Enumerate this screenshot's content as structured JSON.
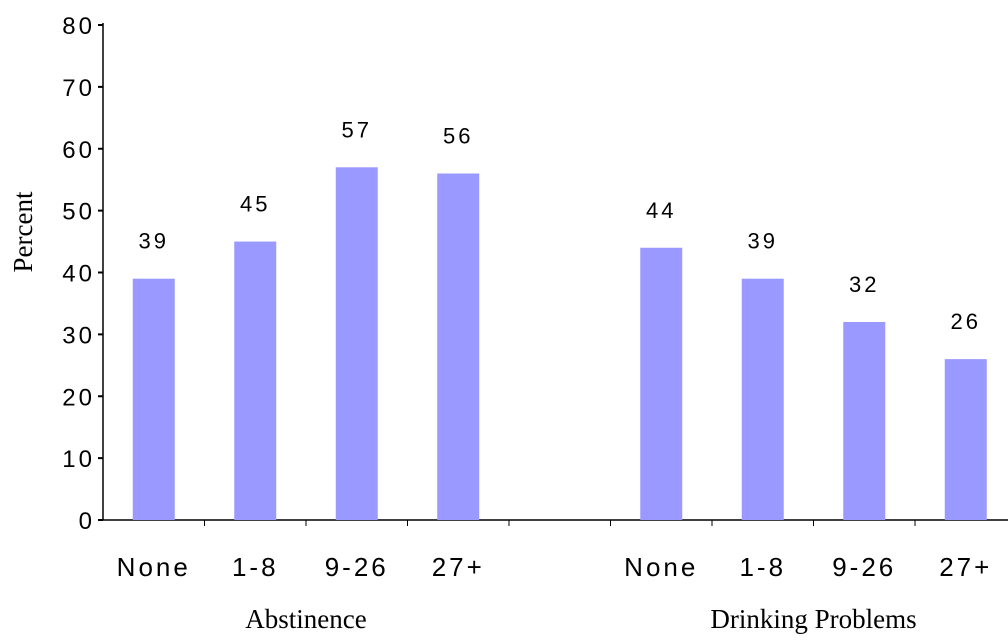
{
  "chart_data": {
    "type": "bar",
    "title": "",
    "xlabel": "",
    "ylabel": "Percent",
    "ylim": [
      0,
      80
    ],
    "yticks": [
      "0",
      "10",
      "20",
      "30",
      "40",
      "50",
      "60",
      "70",
      "80"
    ],
    "groups": [
      {
        "label": "Abstinence",
        "categories": [
          "None",
          "1-8",
          "9-26",
          "27+"
        ],
        "values": [
          39,
          45,
          57,
          56
        ],
        "data_labels": [
          "39",
          "45",
          "57",
          "56"
        ]
      },
      {
        "label": "Drinking Problems",
        "categories": [
          "None",
          "1-8",
          "9-26",
          "27+"
        ],
        "values": [
          44,
          39,
          32,
          26
        ],
        "data_labels": [
          "44",
          "39",
          "32",
          "26"
        ]
      }
    ],
    "bar_color": "#9999ff",
    "grid": false,
    "legend": "none"
  }
}
